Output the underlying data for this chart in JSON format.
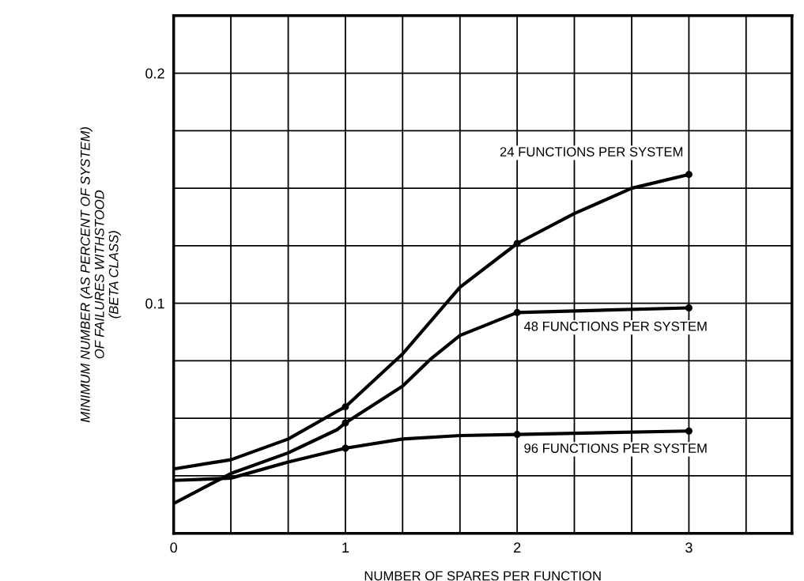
{
  "chart_data": {
    "type": "line",
    "xlabel": "NUMBER OF SPARES PER FUNCTION",
    "ylabel": "MINIMUM NUMBER (AS PERCENT OF SYSTEM)\nOF FAILURES WITHSTOOD\n(BETA CLASS)",
    "xlim": [
      0,
      3.6
    ],
    "ylim": [
      0,
      0.225
    ],
    "xticks": [
      0,
      {
        "value": 0.333,
        "label": null
      },
      {
        "value": 0.667,
        "label": null
      },
      1,
      {
        "value": 1.333,
        "label": null
      },
      {
        "value": 1.667,
        "label": null
      },
      2,
      {
        "value": 2.333,
        "label": null
      },
      {
        "value": 2.667,
        "label": null
      },
      3,
      {
        "value": 3.333,
        "label": null
      }
    ],
    "yticks": [
      {
        "value": 0,
        "label": null
      },
      {
        "value": 0.025,
        "label": null
      },
      {
        "value": 0.05,
        "label": null
      },
      {
        "value": 0.075,
        "label": null
      },
      0.1,
      {
        "value": 0.125,
        "label": null
      },
      {
        "value": 0.15,
        "label": null
      },
      {
        "value": 0.175,
        "label": null
      },
      0.2
    ],
    "grid": true,
    "legend": false,
    "line_style": "solid",
    "series": [
      {
        "name": "24 FUNCTIONS PER SYSTEM",
        "color": "#000000",
        "marker": "none",
        "x": [
          0,
          0.333,
          0.667,
          0.95,
          1,
          1.333,
          1.667,
          2,
          2.333,
          2.667,
          3
        ],
        "values": [
          0.028,
          0.032,
          0.041,
          0.053,
          0.055,
          0.078,
          0.107,
          0.126,
          0.139,
          0.15,
          0.156
        ]
      },
      {
        "name": "48 FUNCTIONS PER SYSTEM",
        "color": "#000000",
        "marker": "none",
        "x": [
          0,
          0.333,
          0.667,
          0.95,
          1,
          1.333,
          1.5,
          1.667,
          2,
          3
        ],
        "values": [
          0.013,
          0.026,
          0.035,
          0.045,
          0.048,
          0.064,
          0.076,
          0.086,
          0.096,
          0.098
        ]
      },
      {
        "name": "96 FUNCTIONS PER SYSTEM",
        "color": "#000000",
        "marker": "none",
        "x": [
          0,
          0.333,
          0.667,
          1,
          1.333,
          1.667,
          2,
          3
        ],
        "values": [
          0.023,
          0.024,
          0.031,
          0.037,
          0.041,
          0.0425,
          0.043,
          0.0445
        ]
      },
      {
        "type": "scatter",
        "color": "#000000",
        "marker": "circle",
        "x": [
          1,
          2,
          3
        ],
        "values": [
          0.055,
          0.126,
          0.156
        ]
      },
      {
        "type": "scatter",
        "color": "#000000",
        "marker": "circle",
        "x": [
          1,
          2,
          3
        ],
        "values": [
          0.048,
          0.096,
          0.098
        ]
      },
      {
        "type": "scatter",
        "color": "#000000",
        "marker": "circle",
        "x": [
          1,
          2,
          3
        ],
        "values": [
          0.037,
          0.043,
          0.0445
        ]
      }
    ]
  }
}
